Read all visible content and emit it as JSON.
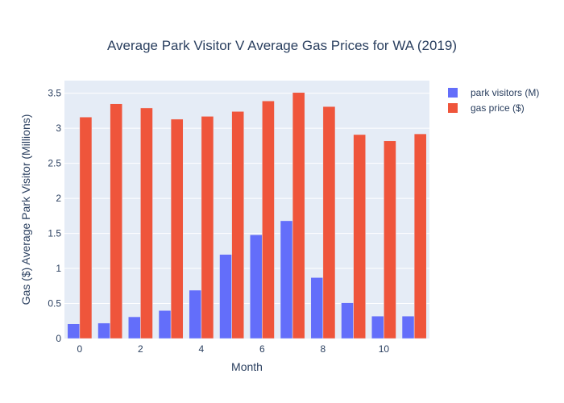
{
  "chart_data": {
    "type": "bar",
    "title": "Average Park Visitor V Average Gas Prices for WA (2019)",
    "xlabel": "Month",
    "ylabel": "Gas ($) Average Park Visitor (Millions)",
    "x": [
      0,
      1,
      2,
      3,
      4,
      5,
      6,
      7,
      8,
      9,
      10,
      11
    ],
    "xticks": [
      0,
      2,
      4,
      6,
      8,
      10
    ],
    "ylim": [
      0,
      3.68
    ],
    "yticks": [
      0,
      0.5,
      1,
      1.5,
      2,
      2.5,
      3,
      3.5
    ],
    "ytick_labels": [
      "0",
      "0.5",
      "1",
      "1.5",
      "2",
      "2.5",
      "3",
      "3.5"
    ],
    "grid": true,
    "legend_position": "top-right",
    "series": [
      {
        "name": "park visitors (M)",
        "color": "#636efa",
        "values": [
          0.21,
          0.22,
          0.31,
          0.4,
          0.69,
          1.2,
          1.48,
          1.68,
          0.87,
          0.51,
          0.32,
          0.32
        ]
      },
      {
        "name": "gas price ($)",
        "color": "#ef553b",
        "values": [
          3.16,
          3.35,
          3.29,
          3.13,
          3.17,
          3.24,
          3.39,
          3.51,
          3.31,
          2.91,
          2.82,
          2.92
        ]
      }
    ]
  }
}
